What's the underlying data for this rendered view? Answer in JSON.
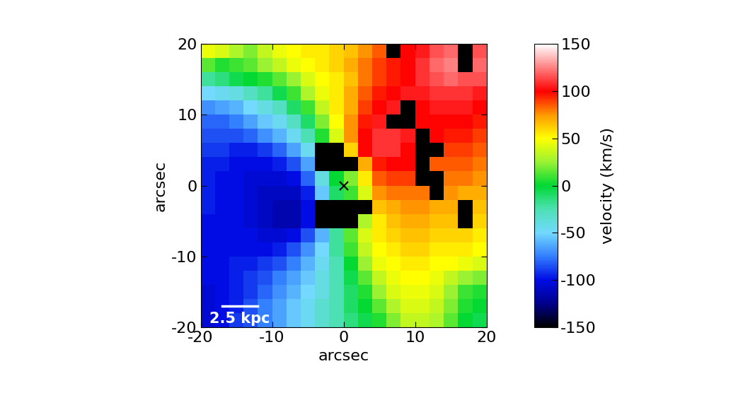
{
  "chart_data": {
    "type": "heatmap",
    "xlabel": "arcsec",
    "ylabel": "arcsec",
    "x": [
      -19,
      -17,
      -15,
      -13,
      -11,
      -9,
      -7,
      -5,
      -3,
      -1,
      1,
      3,
      5,
      7,
      9,
      11,
      13,
      15,
      17,
      19
    ],
    "y": [
      19,
      17,
      15,
      13,
      11,
      9,
      7,
      5,
      3,
      1,
      -1,
      -3,
      -5,
      -7,
      -9,
      -11,
      -13,
      -15,
      -17,
      -19
    ],
    "cells": [
      [
        45,
        40,
        30,
        20,
        35,
        45,
        50,
        55,
        55,
        60,
        65,
        75,
        85,
        null,
        100,
        105,
        115,
        120,
        null,
        115
      ],
      [
        15,
        5,
        10,
        15,
        25,
        35,
        45,
        50,
        55,
        60,
        70,
        80,
        90,
        95,
        100,
        110,
        120,
        125,
        null,
        120
      ],
      [
        -20,
        -15,
        -5,
        0,
        5,
        15,
        25,
        40,
        50,
        55,
        65,
        80,
        90,
        95,
        100,
        110,
        115,
        120,
        115,
        115
      ],
      [
        -50,
        -45,
        -40,
        -30,
        -20,
        -5,
        10,
        30,
        45,
        55,
        70,
        85,
        95,
        100,
        105,
        105,
        110,
        110,
        110,
        105
      ],
      [
        -70,
        -65,
        -60,
        -50,
        -40,
        -30,
        -10,
        10,
        35,
        55,
        70,
        90,
        100,
        105,
        null,
        100,
        105,
        105,
        105,
        100
      ],
      [
        -80,
        -80,
        -75,
        -65,
        -55,
        -45,
        -30,
        -10,
        20,
        50,
        75,
        95,
        105,
        null,
        null,
        100,
        100,
        100,
        100,
        95
      ],
      [
        -85,
        -85,
        -85,
        -80,
        -70,
        -60,
        -45,
        -25,
        5,
        40,
        75,
        100,
        110,
        110,
        105,
        null,
        100,
        95,
        95,
        90
      ],
      [
        -90,
        -90,
        -95,
        -95,
        -90,
        -80,
        -65,
        -45,
        null,
        null,
        60,
        100,
        110,
        110,
        100,
        null,
        null,
        90,
        90,
        85
      ],
      [
        -95,
        -95,
        -100,
        -100,
        -100,
        -95,
        -85,
        -65,
        null,
        null,
        null,
        70,
        95,
        100,
        100,
        null,
        85,
        85,
        85,
        80
      ],
      [
        -95,
        -100,
        -100,
        -105,
        -105,
        -105,
        -100,
        -80,
        -40,
        0,
        20,
        55,
        85,
        90,
        90,
        null,
        null,
        80,
        80,
        75
      ],
      [
        -95,
        -100,
        -100,
        -105,
        -110,
        -110,
        -110,
        -95,
        -55,
        -10,
        10,
        40,
        75,
        80,
        80,
        80,
        null,
        75,
        70,
        70
      ],
      [
        -95,
        -100,
        -100,
        -105,
        -110,
        -115,
        -115,
        -100,
        null,
        null,
        null,
        null,
        65,
        70,
        75,
        75,
        70,
        70,
        null,
        65
      ],
      [
        -100,
        -100,
        -100,
        -105,
        -110,
        -115,
        -115,
        -100,
        null,
        null,
        null,
        30,
        55,
        65,
        70,
        70,
        65,
        65,
        null,
        60
      ],
      [
        -100,
        -100,
        -100,
        -100,
        -105,
        -105,
        -100,
        -85,
        -60,
        -20,
        15,
        40,
        55,
        60,
        65,
        65,
        60,
        60,
        60,
        55
      ],
      [
        -100,
        -100,
        -100,
        -100,
        -100,
        -95,
        -85,
        -70,
        -50,
        -20,
        10,
        35,
        50,
        55,
        60,
        60,
        55,
        55,
        55,
        50
      ],
      [
        -100,
        -100,
        -95,
        -95,
        -90,
        -85,
        -75,
        -60,
        -45,
        -25,
        0,
        25,
        45,
        50,
        55,
        55,
        50,
        50,
        45,
        40
      ],
      [
        -100,
        -100,
        -95,
        -90,
        -85,
        -75,
        -65,
        -55,
        -40,
        -25,
        -5,
        15,
        35,
        45,
        50,
        50,
        45,
        35,
        25,
        20
      ],
      [
        -105,
        -100,
        -95,
        -90,
        -80,
        -70,
        -60,
        -50,
        -40,
        -25,
        -10,
        5,
        25,
        40,
        45,
        45,
        40,
        25,
        10,
        5
      ],
      [
        -105,
        -100,
        -95,
        -85,
        -75,
        -65,
        -55,
        -45,
        -35,
        -25,
        -10,
        0,
        15,
        30,
        40,
        40,
        35,
        20,
        5,
        0
      ],
      [
        -105,
        -100,
        -90,
        -85,
        -75,
        -65,
        -55,
        -45,
        -35,
        -25,
        -15,
        -5,
        5,
        20,
        35,
        35,
        30,
        15,
        0,
        -5
      ]
    ],
    "xlim": [
      -20,
      20
    ],
    "ylim": [
      -20,
      20
    ],
    "xticks": [
      -20,
      -10,
      0,
      10,
      20
    ],
    "yticks": [
      -20,
      -10,
      0,
      10,
      20
    ],
    "colorbar": {
      "label": "velocity (km/s)",
      "range": [
        -150,
        150
      ],
      "ticks": [
        -150,
        -100,
        -50,
        0,
        50,
        100,
        150
      ]
    },
    "scale_bar": {
      "label": "2.5 kpc",
      "length": 5
    },
    "center_marker": {
      "x": 0,
      "y": 0,
      "marker": "x"
    }
  }
}
